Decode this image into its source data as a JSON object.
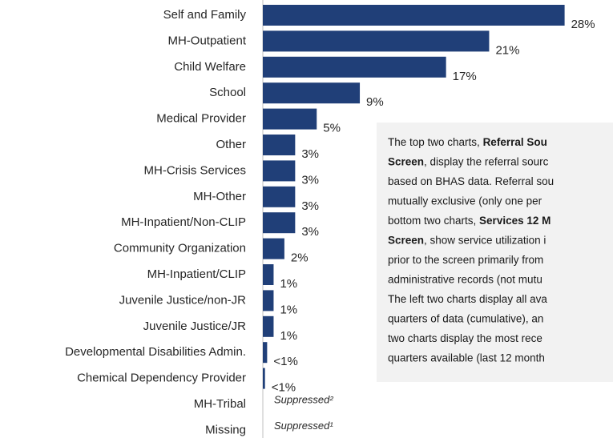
{
  "chart_data": {
    "type": "bar",
    "orientation": "horizontal",
    "categories": [
      "Self and Family",
      "MH-Outpatient",
      "Child Welfare",
      "School",
      "Medical Provider",
      "Other",
      "MH-Crisis Services",
      "MH-Other",
      "MH-Inpatient/Non-CLIP",
      "Community Organization",
      "MH-Inpatient/CLIP",
      "Juvenile Justice/non-JR",
      "Juvenile Justice/JR",
      "Developmental Disabilities Admin.",
      "Chemical Dependency Provider",
      "MH-Tribal",
      "Missing"
    ],
    "values": [
      28,
      21,
      17,
      9,
      5,
      3,
      3,
      3,
      3,
      2,
      1,
      1,
      1,
      0.4,
      0.2,
      null,
      null
    ],
    "value_labels": [
      "28%",
      "21%",
      "17%",
      "9%",
      "5%",
      "3%",
      "3%",
      "3%",
      "3%",
      "2%",
      "1%",
      "1%",
      "1%",
      "<1%",
      "<1%",
      "Suppressed²",
      "Suppressed¹"
    ],
    "color": "#203f78"
  },
  "note": {
    "lines": [
      [
        {
          "text": "The top two charts, "
        },
        {
          "text": "Referral Sou",
          "bold": true
        }
      ],
      [
        {
          "text": "Screen",
          "bold": true
        },
        {
          "text": ", display the referral sourc"
        }
      ],
      [
        {
          "text": "based on BHAS data. Referral sou"
        }
      ],
      [
        {
          "text": "mutually exclusive (only one per"
        }
      ],
      [
        {
          "text": "bottom two charts, "
        },
        {
          "text": "Services 12 M",
          "bold": true
        }
      ],
      [
        {
          "text": "Screen",
          "bold": true
        },
        {
          "text": ", show service utilization i"
        }
      ],
      [
        {
          "text": "prior to the screen primarily from"
        }
      ],
      [
        {
          "text": "administrative records (not mutu"
        }
      ],
      [
        {
          "text": "The left two charts display all ava"
        }
      ],
      [
        {
          "text": "quarters of data (cumulative), an"
        }
      ],
      [
        {
          "text": "two charts display the most rece"
        }
      ],
      [
        {
          "text": "quarters available (last 12 month"
        }
      ]
    ]
  }
}
